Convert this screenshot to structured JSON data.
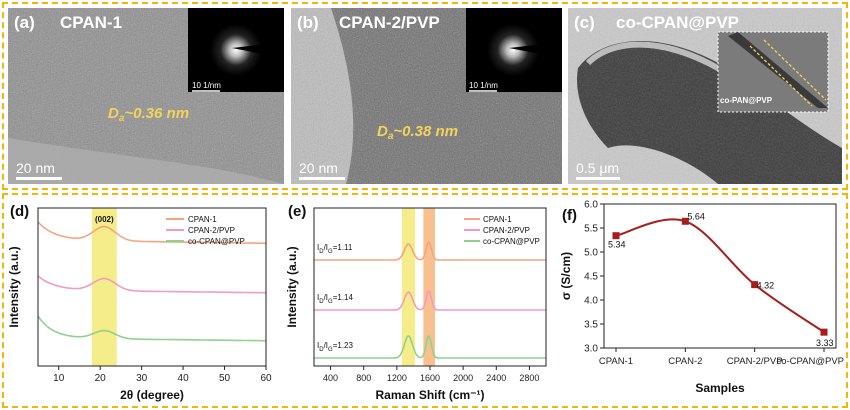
{
  "panels": {
    "a": {
      "letter": "(a)",
      "title": "CPAN-1",
      "d_spacing": "Da~0.36 nm",
      "d_sym": "D",
      "d_sub": "a",
      "d_rest": "~0.36 nm",
      "scale_bar": "20 nm",
      "inset_scale": "10 1/nm"
    },
    "b": {
      "letter": "(b)",
      "title": "CPAN-2/PVP",
      "d_sym": "D",
      "d_sub": "a",
      "d_rest": "~0.38 nm",
      "scale_bar": "20 nm",
      "inset_scale": "10 1/nm"
    },
    "c": {
      "letter": "(c)",
      "title": "co-CPAN@PVP",
      "scale_bar": "0.5 μm",
      "inset_label": "co-PAN@PVP"
    }
  },
  "colors": {
    "cpan1": "#f4a582",
    "cpan2pvp": "#f49ac2",
    "cocpan": "#8fd18f",
    "band_yellow": "#f5ec8a",
    "band_orange": "#f9c08f",
    "conductivity": "#a81c1c"
  },
  "chart_data": [
    {
      "id": "d",
      "letter": "(d)",
      "type": "line",
      "xlabel": "2θ (degree)",
      "ylabel": "Intensity (a.u.)",
      "xlim": [
        5,
        60
      ],
      "xticks": [
        10,
        20,
        30,
        40,
        50,
        60
      ],
      "band": {
        "x": [
          18,
          24
        ],
        "label": "(002)"
      },
      "legend": [
        "CPAN-1",
        "CPAN-2/PVP",
        "co-CPAN@PVP"
      ],
      "series": [
        {
          "name": "CPAN-1",
          "offset": 2.0
        },
        {
          "name": "CPAN-2/PVP",
          "offset": 1.0
        },
        {
          "name": "co-CPAN@PVP",
          "offset": 0.0
        }
      ]
    },
    {
      "id": "e",
      "letter": "(e)",
      "type": "line",
      "xlabel": "Raman Shift (cm⁻¹)",
      "ylabel": "Intensity (a.u.)",
      "xlim": [
        200,
        3000
      ],
      "xticks": [
        400,
        800,
        1200,
        1600,
        2000,
        2400,
        2800
      ],
      "bands": [
        {
          "x": [
            1260,
            1420
          ]
        },
        {
          "x": [
            1520,
            1660
          ]
        }
      ],
      "legend": [
        "CPAN-1",
        "CPAN-2/PVP",
        "co-CPAN@PVP"
      ],
      "annotations": [
        "ID/IG=1.11",
        "ID/IG=1.14",
        "ID/IG=1.23"
      ],
      "ratio_values": [
        1.11,
        1.14,
        1.23
      ],
      "series": [
        {
          "name": "CPAN-1",
          "offset": 2.0
        },
        {
          "name": "CPAN-2/PVP",
          "offset": 1.0
        },
        {
          "name": "co-CPAN@PVP",
          "offset": 0.0
        }
      ]
    },
    {
      "id": "f",
      "letter": "(f)",
      "type": "line",
      "xlabel": "Samples",
      "ylabel": "σ (S/cm)",
      "categories": [
        "CPAN-1",
        "CPAN-2",
        "CPAN-2/PVP",
        "co-CPAN@PVP"
      ],
      "values": [
        5.34,
        5.64,
        4.32,
        3.33
      ],
      "value_labels": [
        "5.34",
        "5.64",
        "4.32",
        "3.33"
      ],
      "ylim": [
        3.0,
        6.0
      ],
      "yticks": [
        "3.0",
        "3.5",
        "4.0",
        "4.5",
        "5.0",
        "5.5",
        "6.0"
      ]
    }
  ]
}
